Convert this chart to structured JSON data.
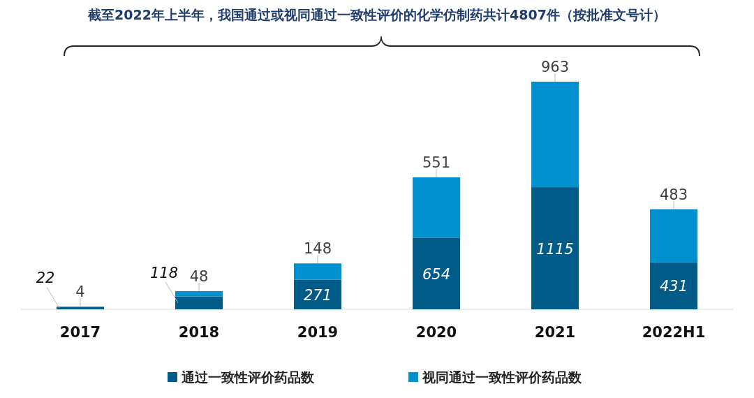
{
  "chart_data": {
    "type": "bar",
    "stacked": true,
    "title": "截至2022年上半年，我国通过或视同通过一致性评价的化学仿制药共计4807件（按批准文号计）",
    "categories": [
      "2017",
      "2018",
      "2019",
      "2020",
      "2021",
      "2022H1"
    ],
    "series": [
      {
        "name": "通过一致性评价药品数",
        "color": "#005b88",
        "values": [
          22,
          118,
          271,
          654,
          1115,
          431
        ]
      },
      {
        "name": "视同通过一致性评价药品数",
        "color": "#0090d0",
        "values": [
          4,
          48,
          148,
          551,
          963,
          483
        ]
      }
    ],
    "data_labels": true,
    "legend": "bottom"
  }
}
